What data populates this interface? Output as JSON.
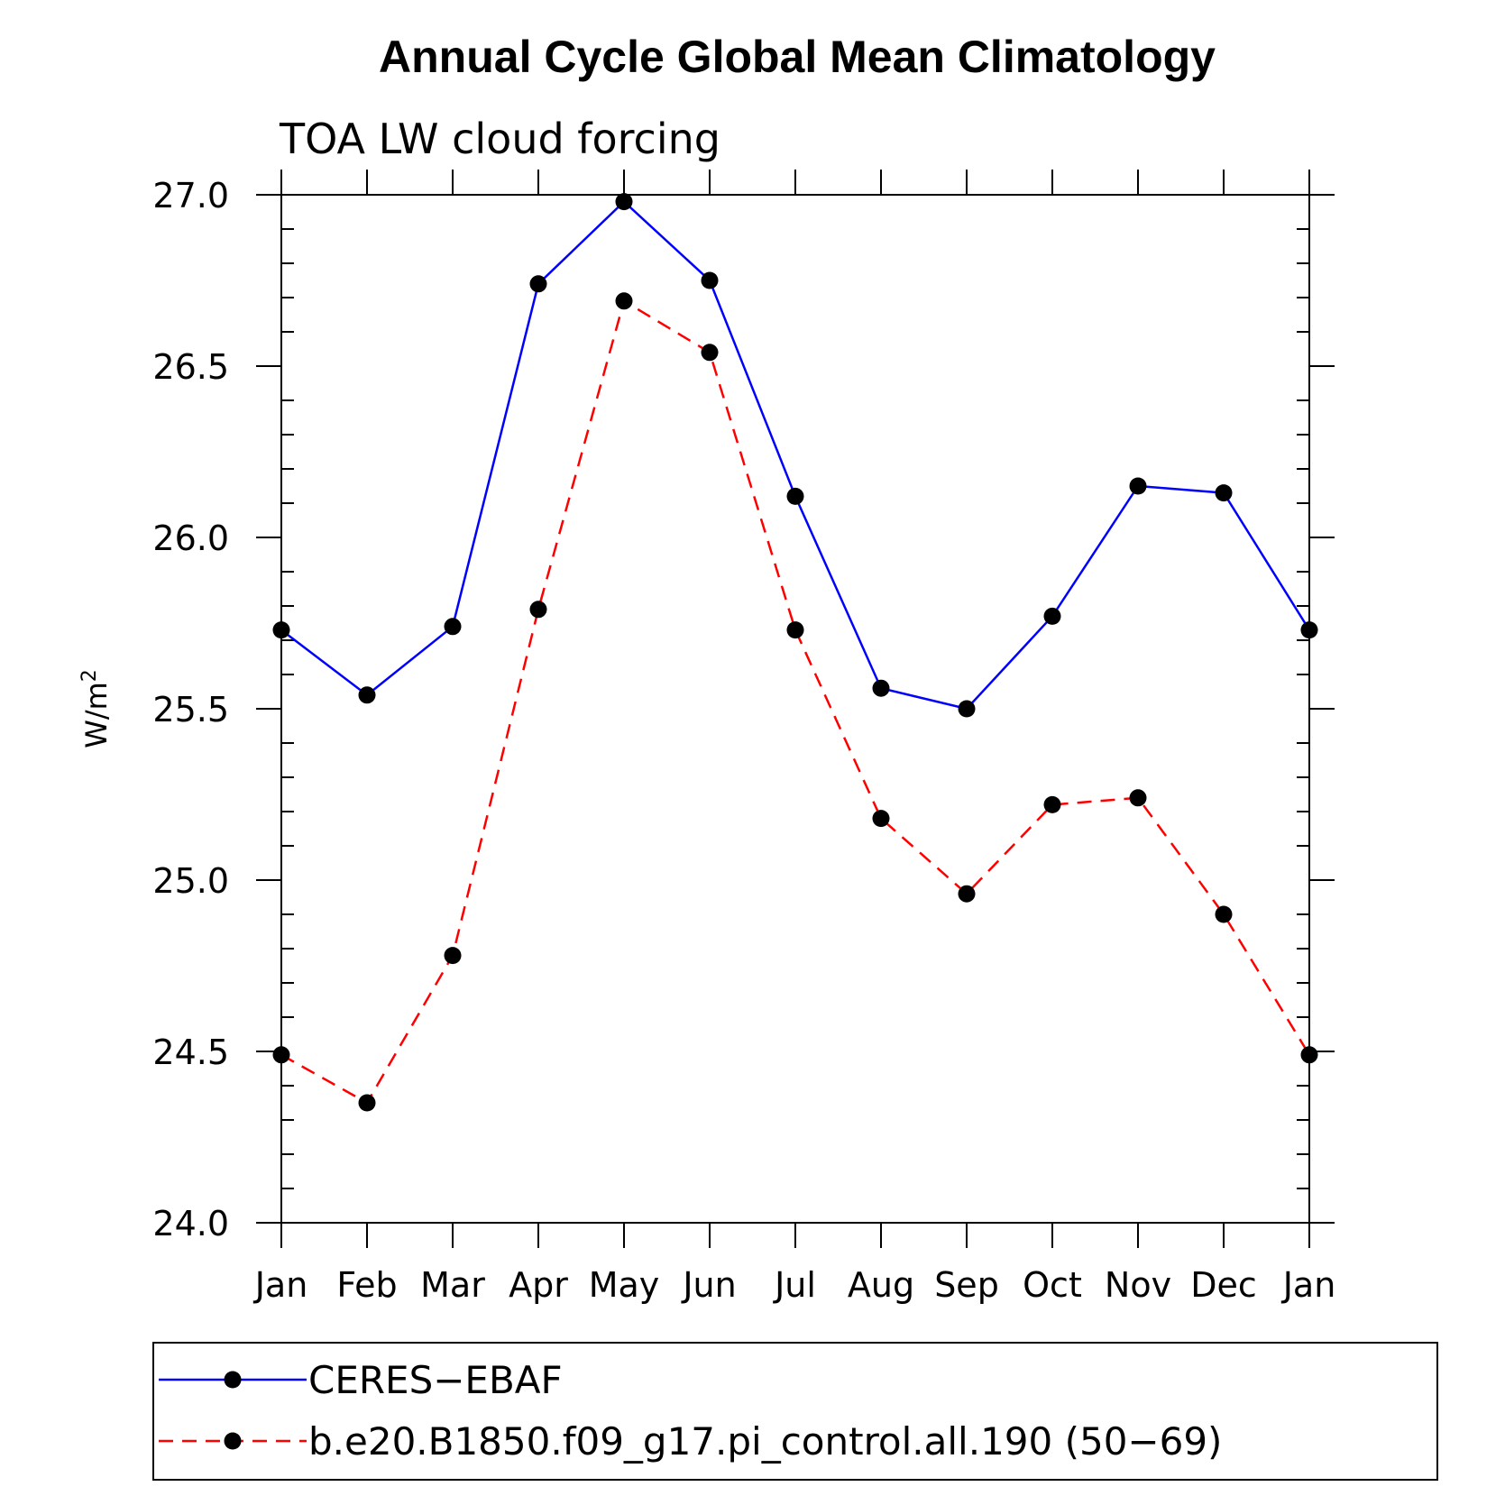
{
  "chart_data": {
    "type": "line",
    "title": "Annual Cycle Global Mean Climatology",
    "subtitle": "TOA LW cloud forcing",
    "ylabel": "W/m",
    "ylabel_superscript": "2",
    "xlabel": "",
    "categories": [
      "Jan",
      "Feb",
      "Mar",
      "Apr",
      "May",
      "Jun",
      "Jul",
      "Aug",
      "Sep",
      "Oct",
      "Nov",
      "Dec",
      "Jan"
    ],
    "ylim": [
      24.0,
      27.0
    ],
    "yticks": [
      "24.0",
      "24.5",
      "25.0",
      "25.5",
      "26.0",
      "26.5",
      "27.0"
    ],
    "grid": false,
    "legend_position": "bottom",
    "series": [
      {
        "name": "CERES−EBAF",
        "color": "#0000ff",
        "style": "solid",
        "values": [
          25.73,
          25.54,
          25.74,
          26.74,
          26.98,
          26.75,
          26.12,
          25.56,
          25.5,
          25.77,
          26.15,
          26.13,
          25.73
        ]
      },
      {
        "name": "b.e20.B1850.f09_g17.pi_control.all.190 (50−69)",
        "color": "#ff0000",
        "style": "dashed",
        "values": [
          24.49,
          24.35,
          24.78,
          25.79,
          26.69,
          26.54,
          25.73,
          25.18,
          24.96,
          25.22,
          25.24,
          24.9,
          24.49
        ]
      }
    ]
  }
}
